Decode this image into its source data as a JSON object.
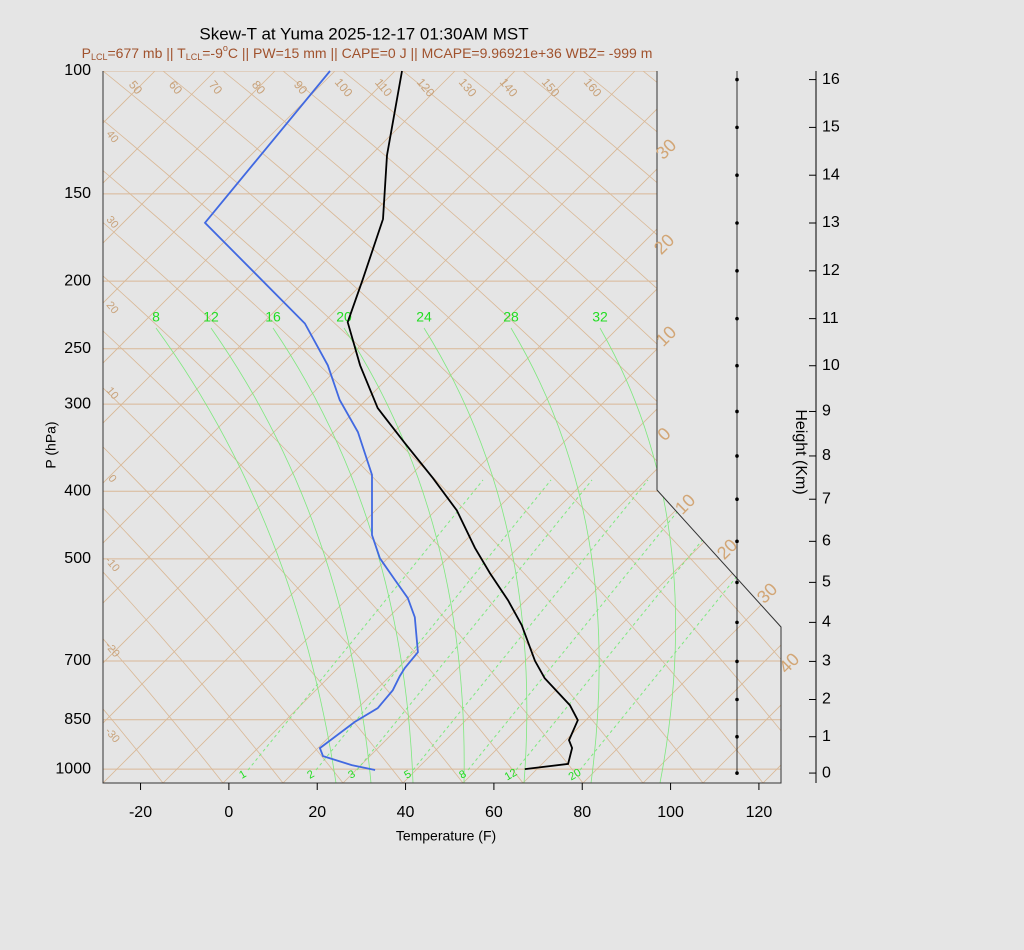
{
  "chart_data": {
    "type": "skewt",
    "title": "Skew-T at Yuma 2025-12-17 01:30AM MST",
    "subtitle_parts": [
      "P",
      "LCL",
      "=677 mb || T",
      "LCL",
      "=-9",
      "o",
      "C || PW=15 mm || CAPE=0 J || MCAPE=9.96921e+36 WBZ= -999 m"
    ],
    "x_label": "Temperature (F)",
    "y_label": "P (hPa)",
    "y2_label": "Height (Km)",
    "xlim": [
      -28.5,
      125
    ],
    "xticks": [
      -20,
      0,
      20,
      40,
      60,
      80,
      100,
      120
    ],
    "ylim": [
      1047,
      100
    ],
    "yticks": [
      100,
      150,
      200,
      250,
      300,
      400,
      500,
      700,
      850,
      1000
    ],
    "log_scale": true,
    "y2ticks": [
      0,
      1,
      2,
      3,
      4,
      5,
      6,
      7,
      8,
      9,
      10,
      11,
      12,
      13,
      14,
      15,
      16
    ],
    "series": [
      {
        "color": "#000000",
        "pressure": [
          1000,
          983,
          933,
          909,
          851,
          810,
          741,
          700,
          622,
          573,
          524,
          482,
          426,
          383,
          341,
          304,
          264,
          229,
          199,
          163,
          132,
          100
        ],
        "values": [
          67,
          76.8,
          77.7,
          77,
          79,
          77.2,
          71.5,
          69.3,
          66.3,
          63.2,
          59.1,
          55.7,
          51.6,
          46.2,
          39.8,
          33.7,
          29.7,
          26.9,
          30.3,
          34.9,
          35.8,
          39.2
        ]
      },
      {
        "color": "#4169e1",
        "pressure": [
          1003,
          987,
          958,
          933,
          904,
          856,
          818,
          771,
          736,
          717,
          680,
          606,
          569,
          536,
          499,
          462,
          379,
          329,
          296,
          264,
          230,
          165,
          100
        ],
        "values": [
          33.1,
          27.8,
          21.3,
          20.6,
          23.5,
          28.5,
          33.7,
          37.1,
          38.7,
          39.8,
          42.8,
          42.1,
          40.5,
          37.6,
          34.2,
          32.4,
          32.4,
          29.2,
          25.1,
          22.4,
          17.2,
          -5.4,
          22.9
        ]
      }
    ],
    "isotherm_labels_left": [
      40,
      30,
      20,
      10,
      0,
      -10,
      -20,
      -30
    ],
    "isotherm_labels_right": [
      30,
      20,
      10,
      0,
      10,
      20,
      30,
      40
    ],
    "adiabat_labels_top": [
      50,
      60,
      70,
      80,
      90,
      100,
      110,
      120,
      130,
      140,
      150,
      160
    ],
    "moist_labels_top": [
      8,
      12,
      16,
      20,
      24,
      28,
      32
    ],
    "mixing_labels_bottom": [
      1,
      2,
      3,
      5,
      8,
      12,
      20
    ]
  }
}
